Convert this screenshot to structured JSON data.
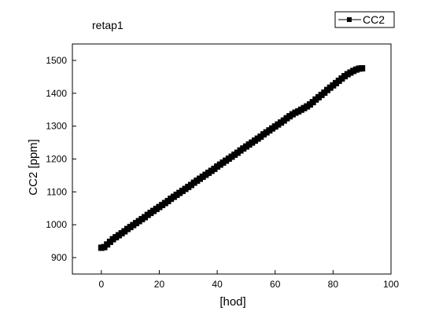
{
  "chart_data": {
    "type": "scatter",
    "title": "retap1",
    "xlabel": "[hod]",
    "ylabel": "CC2 [ppm]",
    "xlim": [
      -10,
      100
    ],
    "ylim": [
      850,
      1550
    ],
    "xticks": [
      0,
      20,
      40,
      60,
      80,
      100
    ],
    "yticks": [
      900,
      1000,
      1100,
      1200,
      1300,
      1400,
      1500
    ],
    "grid": false,
    "legend": {
      "position": "top-right",
      "entries": [
        "CC2"
      ]
    },
    "series": [
      {
        "name": "CC2",
        "color": "#000000",
        "marker": "square",
        "x": [
          0,
          1,
          2,
          3,
          4,
          5,
          6,
          7,
          8,
          9,
          10,
          11,
          12,
          13,
          14,
          15,
          16,
          17,
          18,
          19,
          20,
          21,
          22,
          23,
          24,
          25,
          26,
          27,
          28,
          29,
          30,
          31,
          32,
          33,
          34,
          35,
          36,
          37,
          38,
          39,
          40,
          41,
          42,
          43,
          44,
          45,
          46,
          47,
          48,
          49,
          50,
          51,
          52,
          53,
          54,
          55,
          56,
          57,
          58,
          59,
          60,
          61,
          62,
          63,
          64,
          65,
          66,
          67,
          68,
          69,
          70,
          71,
          72,
          73,
          74,
          75,
          76,
          77,
          78,
          79,
          80,
          81,
          82,
          83,
          84,
          85,
          86,
          87,
          88,
          89,
          90
        ],
        "y": [
          930,
          932,
          940,
          948,
          956,
          962,
          968,
          974,
          980,
          987,
          993,
          999,
          1005,
          1011,
          1017,
          1023,
          1030,
          1036,
          1042,
          1048,
          1054,
          1060,
          1066,
          1072,
          1079,
          1085,
          1091,
          1097,
          1103,
          1109,
          1115,
          1121,
          1128,
          1134,
          1140,
          1146,
          1152,
          1158,
          1164,
          1170,
          1177,
          1183,
          1189,
          1195,
          1201,
          1207,
          1213,
          1219,
          1226,
          1232,
          1238,
          1244,
          1250,
          1256,
          1262,
          1268,
          1275,
          1281,
          1287,
          1293,
          1299,
          1305,
          1311,
          1317,
          1324,
          1330,
          1336,
          1341,
          1345,
          1350,
          1355,
          1360,
          1366,
          1373,
          1381,
          1388,
          1395,
          1402,
          1410,
          1417,
          1424,
          1431,
          1438,
          1445,
          1452,
          1458,
          1463,
          1468,
          1472,
          1475,
          1476
        ]
      }
    ]
  }
}
